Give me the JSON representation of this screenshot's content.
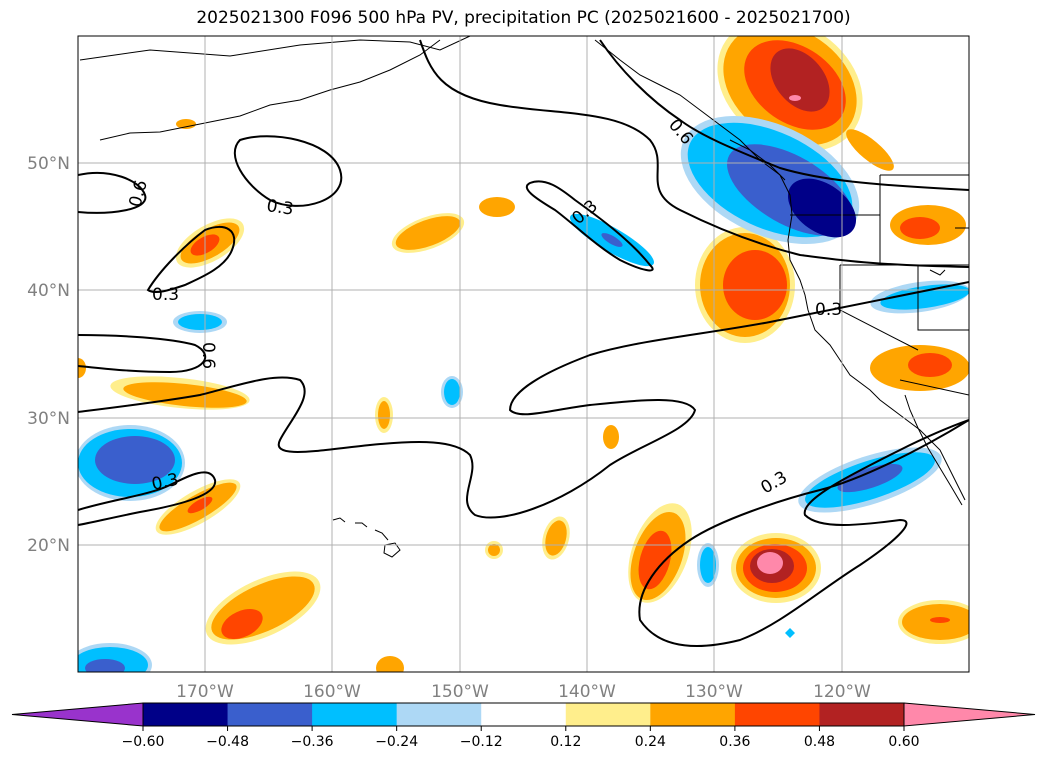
{
  "title": "2025021300 F096 500 hPa PV, precipitation PC (2025021600 - 2025021700)",
  "lat_labels": [
    "50°N",
    "40°N",
    "30°N",
    "20°N"
  ],
  "lon_labels": [
    "170°W",
    "160°W",
    "150°W",
    "140°W",
    "130°W",
    "120°W"
  ],
  "contour_labels": [
    "0.6",
    "0.3",
    "0.3",
    "0.6",
    "0.3",
    "0.3",
    "0.3",
    "0.6",
    "0.3"
  ],
  "colorbar": {
    "tick_labels": [
      "−0.60",
      "−0.48",
      "−0.36",
      "−0.24",
      "−0.12",
      "0.12",
      "0.24",
      "0.36",
      "0.48",
      "0.60"
    ],
    "colors": [
      "#9933cc",
      "#000088",
      "#3a5fcd",
      "#00bfff",
      "#add8f5",
      "#ffffff",
      "#ffee8c",
      "#ffa500",
      "#ff4500",
      "#b22222",
      "#ff88aa"
    ]
  },
  "colors": {
    "orange": "#ffa500",
    "red_orange": "#ff4500",
    "dark_red": "#b22222",
    "pink": "#ff88aa",
    "light_yellow": "#ffee8c",
    "deep_sky_blue": "#00bfff",
    "royal_blue": "#3a5fcd",
    "navy": "#000088",
    "light_blue": "#add8f5"
  }
}
